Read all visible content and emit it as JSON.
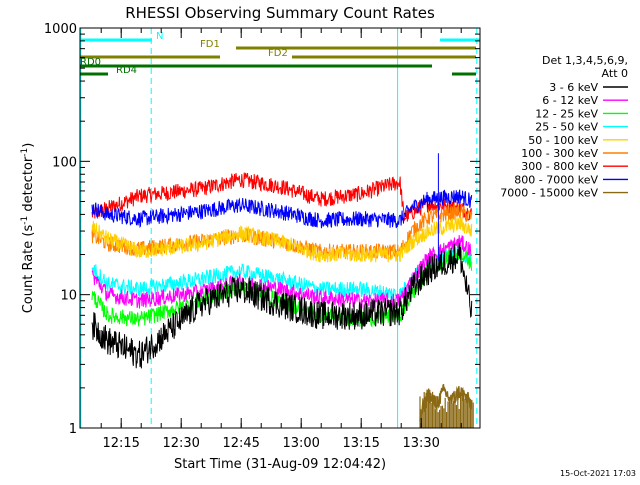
{
  "chart_data": {
    "type": "line",
    "title": "RHESSI Observing Summary Count Rates",
    "xlabel": "Start Time (31-Aug-09 12:04:42)",
    "ylabel_main": "Count Rate (s",
    "ylabel_sup1": "-1",
    "ylabel_mid": " detector",
    "ylabel_sup2": "-1",
    "ylabel_end": ")",
    "yscale": "log",
    "ylim": [
      1,
      1000
    ],
    "xlim_min": [
      5.0,
      105.0
    ],
    "x_ticks": [
      {
        "label": "12:15",
        "x": 15.3
      },
      {
        "label": "12:30",
        "x": 30.3
      },
      {
        "label": "12:45",
        "x": 45.3
      },
      {
        "label": "13:00",
        "x": 60.3
      },
      {
        "label": "13:15",
        "x": 75.3
      },
      {
        "label": "13:30",
        "x": 90.3
      }
    ],
    "y_ticks": [
      {
        "label": "1",
        "v": 1
      },
      {
        "label": "10",
        "v": 10
      },
      {
        "label": "100",
        "v": 100
      },
      {
        "label": "1000",
        "v": 1000
      }
    ],
    "legend": {
      "header1": "Det 1,3,4,5,6,9,",
      "header2": "Att 0",
      "entries": [
        {
          "label": "3 - 6 keV",
          "color": "#000000"
        },
        {
          "label": "6 - 12 keV",
          "color": "#ff00ff"
        },
        {
          "label": "12 - 25 keV",
          "color": "#00ff00"
        },
        {
          "label": "25 - 50 keV",
          "color": "#00ffff"
        },
        {
          "label": "50 - 100 keV",
          "color": "#ffd000"
        },
        {
          "label": "100 - 300 keV",
          "color": "#ff8000"
        },
        {
          "label": "300 - 800 keV",
          "color": "#ff0000"
        },
        {
          "label": "800 - 7000 keV",
          "color": "#0000ff"
        },
        {
          "label": "7000 - 15000 keV",
          "color": "#8b6914"
        }
      ]
    },
    "series": [
      {
        "color": "#ff0000",
        "points": [
          [
            8,
            40
          ],
          [
            20,
            55
          ],
          [
            35,
            62
          ],
          [
            45,
            73
          ],
          [
            55,
            65
          ],
          [
            65,
            52
          ],
          [
            75,
            57
          ],
          [
            85,
            70
          ],
          [
            86,
            38
          ],
          [
            92,
            48
          ],
          [
            100,
            45
          ],
          [
            103,
            40
          ]
        ]
      },
      {
        "color": "#0000ff",
        "points": [
          [
            8,
            45
          ],
          [
            12,
            40
          ],
          [
            20,
            37
          ],
          [
            35,
            42
          ],
          [
            45,
            47
          ],
          [
            55,
            42
          ],
          [
            65,
            36
          ],
          [
            75,
            37
          ],
          [
            85,
            36
          ],
          [
            88,
            45
          ],
          [
            92,
            52
          ],
          [
            100,
            55
          ],
          [
            103,
            50
          ]
        ]
      },
      {
        "color": "#ff8000",
        "points": [
          [
            8,
            28
          ],
          [
            12,
            24
          ],
          [
            20,
            22
          ],
          [
            35,
            25
          ],
          [
            45,
            28
          ],
          [
            55,
            25
          ],
          [
            65,
            21
          ],
          [
            75,
            21
          ],
          [
            85,
            21
          ],
          [
            88,
            30
          ],
          [
            92,
            38
          ],
          [
            100,
            42
          ],
          [
            103,
            38
          ]
        ]
      },
      {
        "color": "#ffd000",
        "points": [
          [
            8,
            32
          ],
          [
            12,
            26
          ],
          [
            20,
            21
          ],
          [
            35,
            24
          ],
          [
            45,
            29
          ],
          [
            55,
            25
          ],
          [
            65,
            20
          ],
          [
            75,
            20
          ],
          [
            85,
            20
          ],
          [
            88,
            25
          ],
          [
            92,
            30
          ],
          [
            100,
            34
          ],
          [
            103,
            30
          ]
        ]
      },
      {
        "color": "#00ffff",
        "points": [
          [
            8,
            16
          ],
          [
            12,
            12
          ],
          [
            20,
            11
          ],
          [
            35,
            13
          ],
          [
            45,
            15
          ],
          [
            55,
            13
          ],
          [
            65,
            11
          ],
          [
            75,
            11
          ],
          [
            85,
            10
          ],
          [
            88,
            13
          ],
          [
            92,
            17
          ],
          [
            100,
            21
          ],
          [
            103,
            18
          ]
        ]
      },
      {
        "color": "#ff00ff",
        "points": [
          [
            8,
            14
          ],
          [
            12,
            10
          ],
          [
            20,
            9
          ],
          [
            35,
            10.5
          ],
          [
            45,
            12.5
          ],
          [
            55,
            11
          ],
          [
            65,
            9.5
          ],
          [
            75,
            9
          ],
          [
            85,
            9
          ],
          [
            88,
            13
          ],
          [
            92,
            19
          ],
          [
            100,
            25
          ],
          [
            103,
            21
          ]
        ]
      },
      {
        "color": "#00ff00",
        "points": [
          [
            8,
            10
          ],
          [
            12,
            7
          ],
          [
            20,
            6.5
          ],
          [
            35,
            9
          ],
          [
            45,
            11.5
          ],
          [
            55,
            9
          ],
          [
            65,
            7
          ],
          [
            75,
            6.5
          ],
          [
            85,
            7
          ],
          [
            88,
            10
          ],
          [
            92,
            15
          ],
          [
            100,
            21
          ],
          [
            103,
            17
          ]
        ]
      },
      {
        "color": "#000000",
        "points": [
          [
            8,
            6
          ],
          [
            12,
            4.5
          ],
          [
            20,
            3.5
          ],
          [
            35,
            8.5
          ],
          [
            45,
            11
          ],
          [
            55,
            8.5
          ],
          [
            65,
            7
          ],
          [
            75,
            7
          ],
          [
            85,
            7.5
          ],
          [
            88,
            11
          ],
          [
            92,
            15
          ],
          [
            100,
            20
          ],
          [
            103,
            7
          ]
        ]
      },
      {
        "color": "#8b6914",
        "points": [
          [
            90,
            1.2
          ],
          [
            92,
            1.8
          ],
          [
            94,
            1.5
          ],
          [
            96,
            1.9
          ],
          [
            98,
            1.6
          ],
          [
            100,
            1.9
          ],
          [
            103,
            1.5
          ]
        ]
      }
    ],
    "intervals": [
      {
        "row": "N",
        "label": "N",
        "color": "#00ffff",
        "segments": [
          [
            5,
            23
          ],
          [
            95,
            105
          ]
        ],
        "label_x": 24
      },
      {
        "row": "FD1",
        "label": "FD1",
        "color": "#808000",
        "segments": [
          [
            44,
            104
          ]
        ],
        "label_x": 35
      },
      {
        "row": "FD2",
        "label": "FD2",
        "color": "#808000",
        "segments": [
          [
            5,
            40
          ],
          [
            58,
            104
          ]
        ],
        "label_x": 52
      },
      {
        "row": "RD0",
        "label": "RD0",
        "color": "#007000",
        "segments": [
          [
            5,
            93
          ]
        ],
        "label_x": 5
      },
      {
        "row": "RD4",
        "label": "RD4",
        "color": "#007000",
        "segments": [
          [
            5,
            12
          ],
          [
            98,
            104
          ]
        ],
        "label_x": 14
      }
    ],
    "vertical_markers": [
      5.2,
      22.8,
      84.4,
      104.2
    ]
  },
  "footer_date": "15-Oct-2021 17:03"
}
